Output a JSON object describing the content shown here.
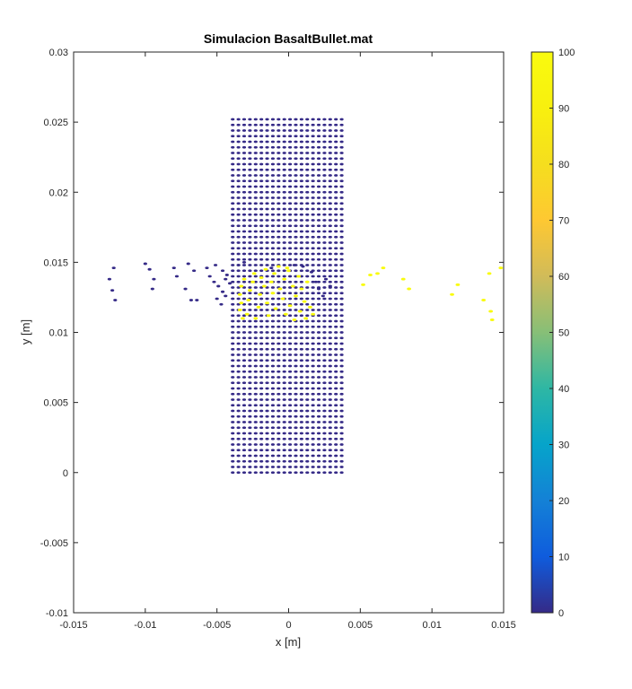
{
  "chart_data": {
    "type": "scatter",
    "title": "Simulacion BasaltBullet.mat",
    "xlabel": "x  [m]",
    "ylabel": "y [m]",
    "xlim": [
      -0.015,
      0.015
    ],
    "ylim": [
      -0.01,
      0.03
    ],
    "xticks": [
      "-0.015",
      "-0.01",
      "-0.005",
      "0",
      "0.005",
      "0.01",
      "0.015"
    ],
    "yticks": [
      "-0.01",
      "-0.005",
      "0",
      "0.005",
      "0.01",
      "0.015",
      "0.02",
      "0.025",
      "0.03"
    ],
    "grid": false,
    "colormap": "parula",
    "colorbar": {
      "range": [
        0,
        100
      ],
      "ticks": [
        "0",
        "10",
        "20",
        "30",
        "40",
        "50",
        "60",
        "70",
        "80",
        "90",
        "100"
      ],
      "position": "right"
    },
    "plate": {
      "x_range": [
        -0.0039,
        0.0039
      ],
      "y_range": [
        0.0,
        0.0254
      ],
      "x_step": 0.0004,
      "y_step": 0.0004,
      "value": 0
    },
    "points": [
      {
        "x": -0.0125,
        "y": 0.0138,
        "v": 0
      },
      {
        "x": -0.0122,
        "y": 0.0146,
        "v": 0
      },
      {
        "x": -0.0123,
        "y": 0.013,
        "v": 0
      },
      {
        "x": -0.0121,
        "y": 0.0123,
        "v": 0
      },
      {
        "x": -0.01,
        "y": 0.0149,
        "v": 0
      },
      {
        "x": -0.0097,
        "y": 0.0145,
        "v": 0
      },
      {
        "x": -0.0094,
        "y": 0.0138,
        "v": 0
      },
      {
        "x": -0.0095,
        "y": 0.0131,
        "v": 0
      },
      {
        "x": -0.008,
        "y": 0.0146,
        "v": 0
      },
      {
        "x": -0.0078,
        "y": 0.014,
        "v": 0
      },
      {
        "x": -0.007,
        "y": 0.0149,
        "v": 0
      },
      {
        "x": -0.0066,
        "y": 0.0144,
        "v": 0
      },
      {
        "x": -0.0072,
        "y": 0.0131,
        "v": 0
      },
      {
        "x": -0.0068,
        "y": 0.0123,
        "v": 0
      },
      {
        "x": -0.0064,
        "y": 0.0123,
        "v": 0
      },
      {
        "x": -0.0057,
        "y": 0.0146,
        "v": 0
      },
      {
        "x": -0.0055,
        "y": 0.014,
        "v": 0
      },
      {
        "x": -0.0052,
        "y": 0.0136,
        "v": 0
      },
      {
        "x": -0.0049,
        "y": 0.0133,
        "v": 0
      },
      {
        "x": -0.0046,
        "y": 0.0144,
        "v": 0
      },
      {
        "x": -0.0046,
        "y": 0.0129,
        "v": 0
      },
      {
        "x": -0.0044,
        "y": 0.0138,
        "v": 0
      },
      {
        "x": -0.005,
        "y": 0.0124,
        "v": 0
      },
      {
        "x": -0.0047,
        "y": 0.012,
        "v": 0
      },
      {
        "x": -0.0043,
        "y": 0.0141,
        "v": 0
      },
      {
        "x": -0.0044,
        "y": 0.0126,
        "v": 0
      },
      {
        "x": -0.0051,
        "y": 0.0148,
        "v": 0
      },
      {
        "x": -0.0041,
        "y": 0.0135,
        "v": 0
      },
      {
        "x": -0.0035,
        "y": 0.0148,
        "v": 0
      },
      {
        "x": -0.0031,
        "y": 0.015,
        "v": 0
      },
      {
        "x": -0.0012,
        "y": 0.0146,
        "v": 0
      },
      {
        "x": 0.0004,
        "y": 0.0148,
        "v": 0
      },
      {
        "x": 0.001,
        "y": 0.0147,
        "v": 0
      },
      {
        "x": 0.0016,
        "y": 0.0143,
        "v": 0
      },
      {
        "x": 0.0017,
        "y": 0.0128,
        "v": 0
      },
      {
        "x": 0.0019,
        "y": 0.0136,
        "v": 0
      },
      {
        "x": 0.0021,
        "y": 0.0131,
        "v": 0
      },
      {
        "x": 0.0024,
        "y": 0.0126,
        "v": 0
      },
      {
        "x": 0.0026,
        "y": 0.0138,
        "v": 0
      },
      {
        "x": 0.0029,
        "y": 0.0133,
        "v": 0
      },
      {
        "x": -0.0031,
        "y": 0.0138,
        "v": 100
      },
      {
        "x": -0.0033,
        "y": 0.0133,
        "v": 100
      },
      {
        "x": -0.0034,
        "y": 0.0127,
        "v": 100
      },
      {
        "x": -0.0033,
        "y": 0.0121,
        "v": 100
      },
      {
        "x": -0.0034,
        "y": 0.0116,
        "v": 100
      },
      {
        "x": -0.0032,
        "y": 0.011,
        "v": 100
      },
      {
        "x": -0.0029,
        "y": 0.0113,
        "v": 100
      },
      {
        "x": -0.0028,
        "y": 0.0123,
        "v": 100
      },
      {
        "x": -0.0027,
        "y": 0.013,
        "v": 100
      },
      {
        "x": -0.0025,
        "y": 0.0136,
        "v": 100
      },
      {
        "x": -0.0024,
        "y": 0.0142,
        "v": 100
      },
      {
        "x": -0.0023,
        "y": 0.011,
        "v": 100
      },
      {
        "x": -0.0021,
        "y": 0.0118,
        "v": 100
      },
      {
        "x": -0.002,
        "y": 0.0127,
        "v": 100
      },
      {
        "x": -0.0019,
        "y": 0.0139,
        "v": 100
      },
      {
        "x": -0.0017,
        "y": 0.0133,
        "v": 100
      },
      {
        "x": -0.0016,
        "y": 0.0145,
        "v": 100
      },
      {
        "x": -0.0015,
        "y": 0.0121,
        "v": 100
      },
      {
        "x": -0.0014,
        "y": 0.0112,
        "v": 100
      },
      {
        "x": -0.0012,
        "y": 0.0136,
        "v": 100
      },
      {
        "x": -0.0011,
        "y": 0.0128,
        "v": 100
      },
      {
        "x": -0.001,
        "y": 0.0142,
        "v": 100
      },
      {
        "x": -0.0009,
        "y": 0.0117,
        "v": 100
      },
      {
        "x": -0.0007,
        "y": 0.0147,
        "v": 100
      },
      {
        "x": -0.0006,
        "y": 0.0131,
        "v": 100
      },
      {
        "x": -0.0004,
        "y": 0.0124,
        "v": 100
      },
      {
        "x": -0.0003,
        "y": 0.0138,
        "v": 100
      },
      {
        "x": -0.0002,
        "y": 0.0113,
        "v": 100
      },
      {
        "x": 0.0,
        "y": 0.0144,
        "v": 100
      },
      {
        "x": 0.0001,
        "y": 0.0119,
        "v": 100
      },
      {
        "x": 0.0003,
        "y": 0.0133,
        "v": 100
      },
      {
        "x": 0.0004,
        "y": 0.0109,
        "v": 100
      },
      {
        "x": 0.0005,
        "y": 0.0126,
        "v": 100
      },
      {
        "x": 0.0007,
        "y": 0.014,
        "v": 100
      },
      {
        "x": 0.0008,
        "y": 0.0115,
        "v": 100
      },
      {
        "x": 0.0009,
        "y": 0.0131,
        "v": 100
      },
      {
        "x": 0.0011,
        "y": 0.0122,
        "v": 100
      },
      {
        "x": 0.0012,
        "y": 0.011,
        "v": 100
      },
      {
        "x": 0.0013,
        "y": 0.0136,
        "v": 100
      },
      {
        "x": 0.0015,
        "y": 0.0118,
        "v": 100
      },
      {
        "x": 0.0017,
        "y": 0.0113,
        "v": 100
      },
      {
        "x": -0.0001,
        "y": 0.0146,
        "v": 100
      },
      {
        "x": 0.0052,
        "y": 0.0134,
        "v": 100
      },
      {
        "x": 0.0057,
        "y": 0.0141,
        "v": 100
      },
      {
        "x": 0.0062,
        "y": 0.0142,
        "v": 100
      },
      {
        "x": 0.0066,
        "y": 0.0146,
        "v": 100
      },
      {
        "x": 0.008,
        "y": 0.0138,
        "v": 100
      },
      {
        "x": 0.0084,
        "y": 0.0131,
        "v": 100
      },
      {
        "x": 0.0114,
        "y": 0.0127,
        "v": 100
      },
      {
        "x": 0.0118,
        "y": 0.0134,
        "v": 100
      },
      {
        "x": 0.0136,
        "y": 0.0123,
        "v": 100
      },
      {
        "x": 0.014,
        "y": 0.0142,
        "v": 100
      },
      {
        "x": 0.0141,
        "y": 0.0115,
        "v": 100
      },
      {
        "x": 0.0142,
        "y": 0.0109,
        "v": 100
      },
      {
        "x": 0.0148,
        "y": 0.0146,
        "v": 100
      }
    ]
  }
}
